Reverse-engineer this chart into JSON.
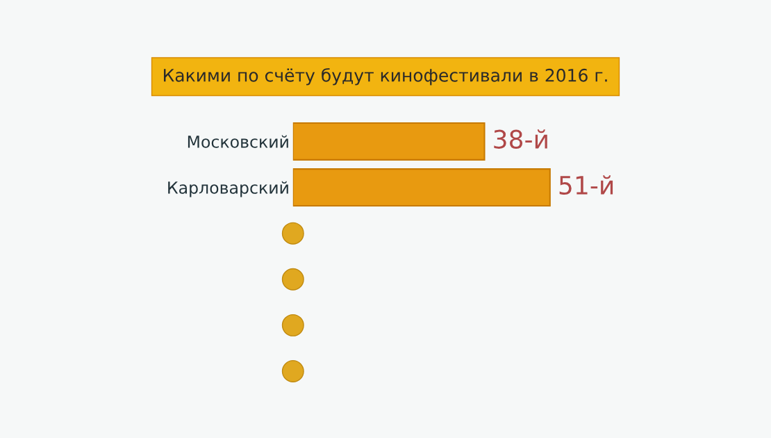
{
  "chart_data": {
    "type": "bar",
    "orientation": "horizontal",
    "title": "Какими по счёту будут кинофестивали в 2016 г.",
    "categories": [
      "Московский",
      "Карловарский",
      null,
      null,
      null,
      null
    ],
    "values": [
      38,
      51,
      null,
      null,
      null,
      null
    ],
    "value_labels": [
      "38-й",
      "51-й",
      null,
      null,
      null,
      null
    ],
    "color": "#e89a10",
    "tick_labels": "y",
    "grid": false,
    "legend": false
  }
}
